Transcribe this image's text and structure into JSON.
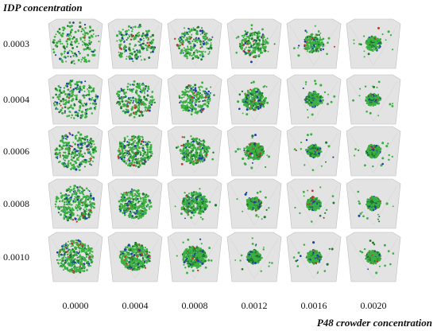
{
  "title": "IDP concentration",
  "x_title": "P48 crowder concentration",
  "rows": [
    "0.0003",
    "0.0004",
    "0.0006",
    "0.0008",
    "0.0010"
  ],
  "columns": [
    "0.0000",
    "0.0004",
    "0.0008",
    "0.0012",
    "0.0016",
    "0.0020"
  ],
  "colors": {
    "box_face": "#e3e3e3",
    "box_edge": "#bdbdbd",
    "particle_green": "#3cb043",
    "particle_dark": "#1f7a2e",
    "particle_blue": "#1f3fa8",
    "particle_red": "#c0392b"
  }
}
